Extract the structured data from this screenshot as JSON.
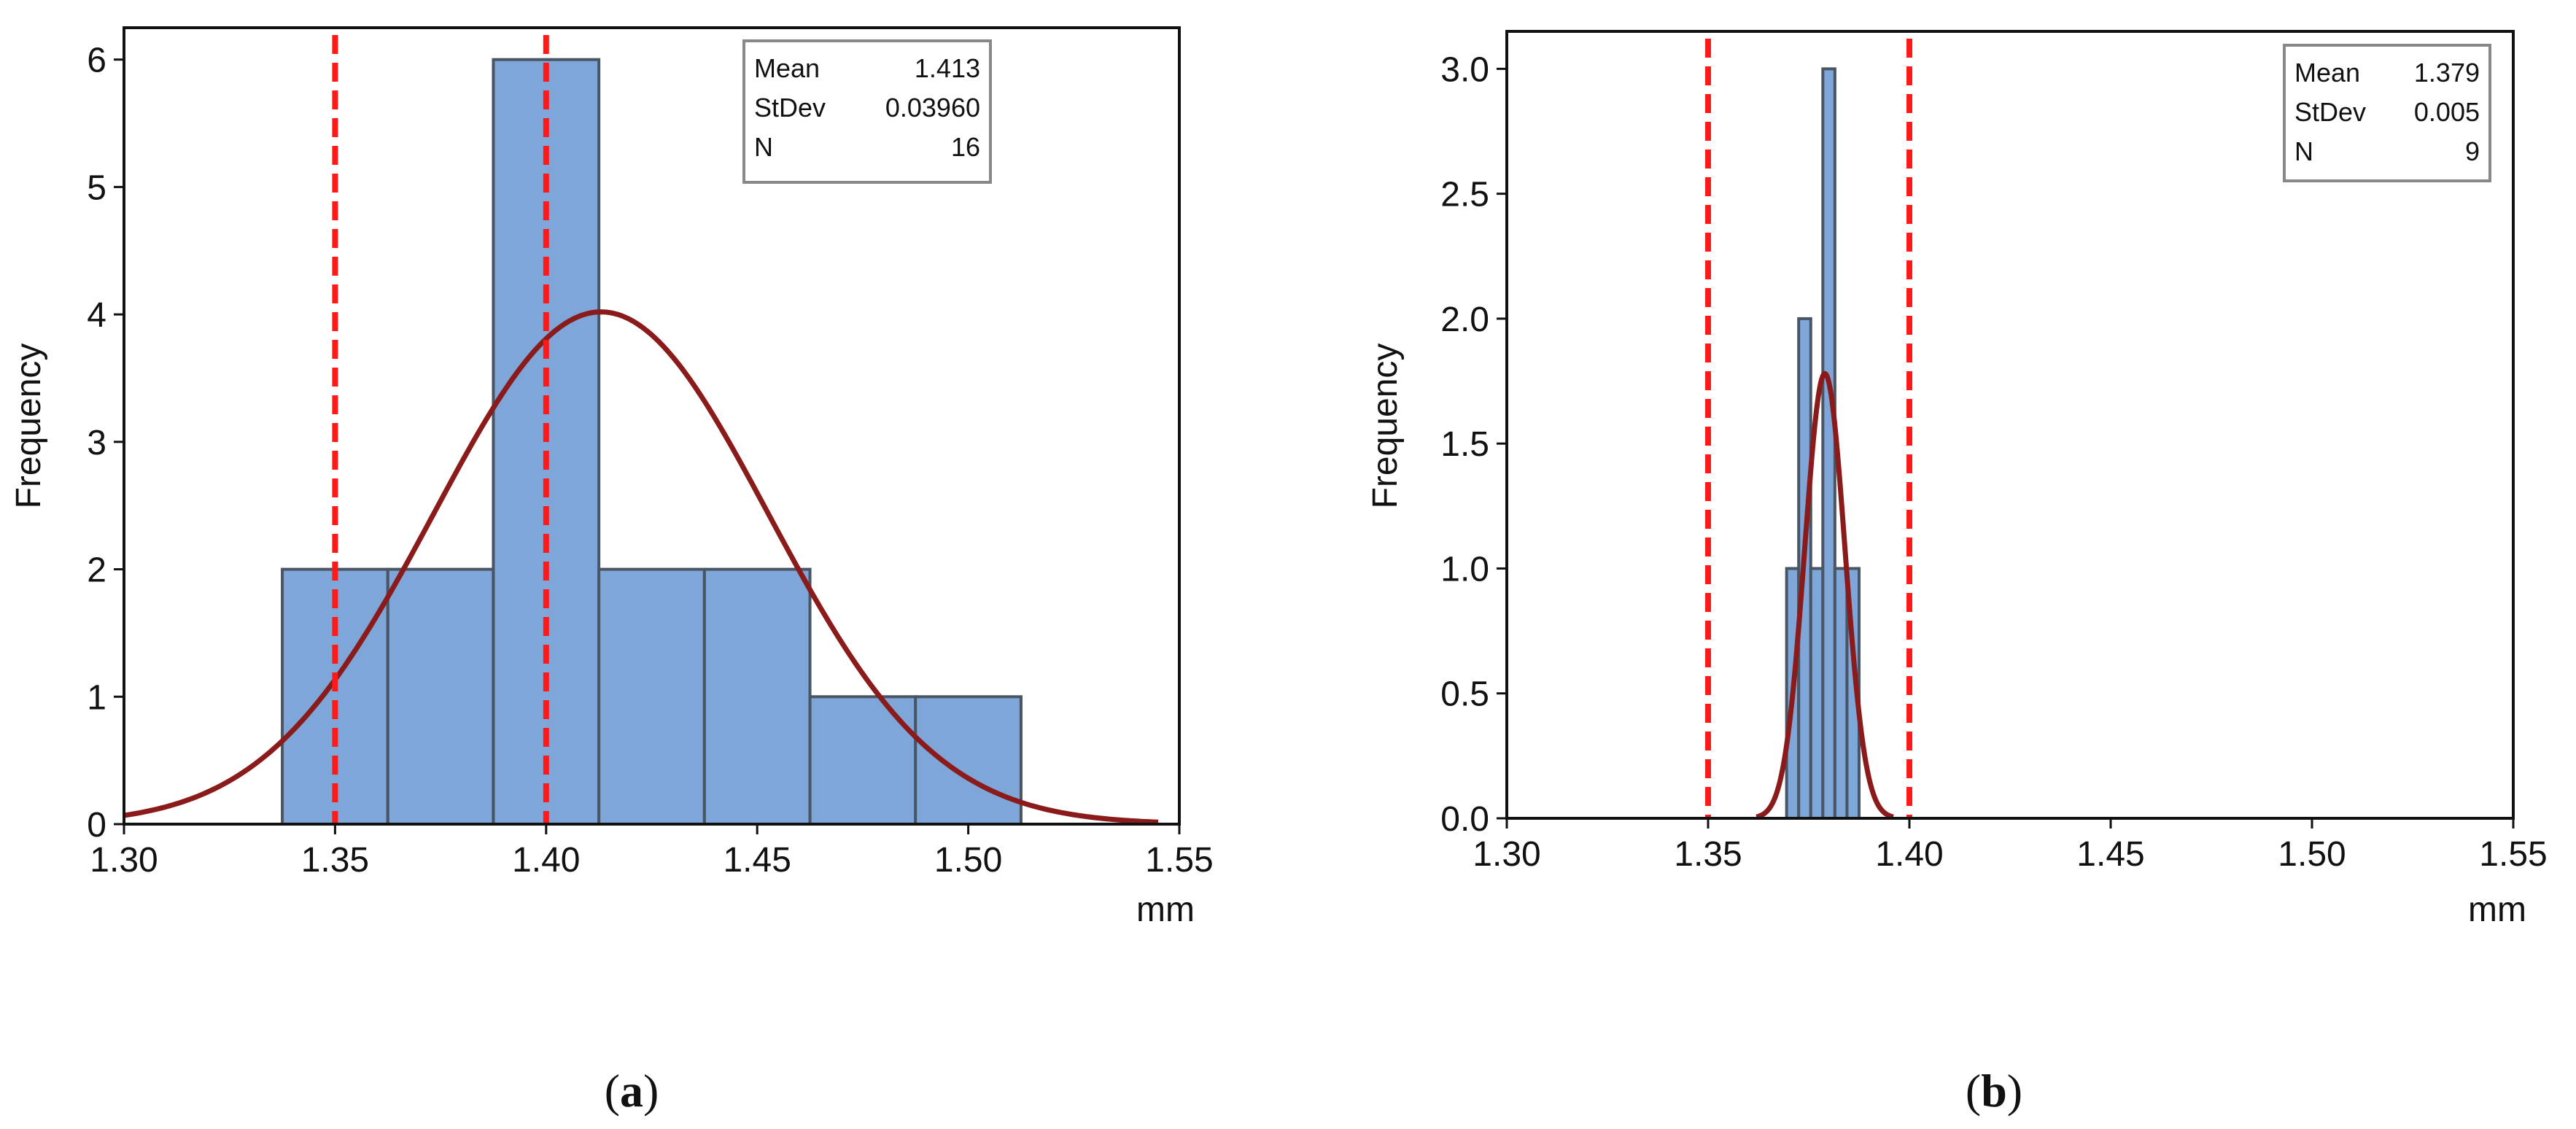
{
  "chart_data": [
    {
      "type": "bar",
      "subtype": "histogram",
      "caption": "a",
      "xlabel": "mm",
      "ylabel": "Frequency",
      "xlim": [
        1.3,
        1.55
      ],
      "ylim": [
        0,
        6.25
      ],
      "xticks": [
        "1.30",
        "1.35",
        "1.40",
        "1.45",
        "1.50",
        "1.55"
      ],
      "xtick_values": [
        1.3,
        1.35,
        1.4,
        1.45,
        1.5,
        1.55
      ],
      "yticks": [
        "0",
        "1",
        "2",
        "3",
        "4",
        "5",
        "6"
      ],
      "ytick_values": [
        0,
        1,
        2,
        3,
        4,
        5,
        6
      ],
      "bins": [
        {
          "start": 1.3375,
          "end": 1.3625,
          "count": 2
        },
        {
          "start": 1.3625,
          "end": 1.3875,
          "count": 2
        },
        {
          "start": 1.3875,
          "end": 1.4125,
          "count": 6
        },
        {
          "start": 1.4125,
          "end": 1.4375,
          "count": 2
        },
        {
          "start": 1.4375,
          "end": 1.4625,
          "count": 2
        },
        {
          "start": 1.4625,
          "end": 1.4875,
          "count": 1
        },
        {
          "start": 1.4875,
          "end": 1.5125,
          "count": 1
        }
      ],
      "spec_limits": [
        1.35,
        1.4
      ],
      "fit_curve": {
        "mean": 1.413,
        "stdev": 0.0396,
        "peak": 4.02,
        "range": [
          1.3,
          1.545
        ]
      },
      "stats": [
        {
          "label": "Mean",
          "value": "1.413"
        },
        {
          "label": "StDev",
          "value": "0.03960"
        },
        {
          "label": "N",
          "value": "16"
        }
      ],
      "colors": {
        "bar_fill": "#7ea6d8",
        "bar_edge": "#4a5563",
        "curve": "#8b1a1a",
        "spec_line": "#ff1a1a"
      }
    },
    {
      "type": "bar",
      "subtype": "histogram",
      "caption": "b",
      "xlabel": "mm",
      "ylabel": "Frequency",
      "xlim": [
        1.3,
        1.55
      ],
      "ylim": [
        0,
        3.15
      ],
      "xticks": [
        "1.30",
        "1.35",
        "1.40",
        "1.45",
        "1.50",
        "1.55"
      ],
      "xtick_values": [
        1.3,
        1.35,
        1.4,
        1.45,
        1.5,
        1.55
      ],
      "yticks": [
        "0.0",
        "0.5",
        "1.0",
        "1.5",
        "2.0",
        "2.5",
        "3.0"
      ],
      "ytick_values": [
        0,
        0.5,
        1.0,
        1.5,
        2.0,
        2.5,
        3.0
      ],
      "bins": [
        {
          "start": 1.3695,
          "end": 1.3725,
          "count": 1
        },
        {
          "start": 1.3725,
          "end": 1.3755,
          "count": 2
        },
        {
          "start": 1.3755,
          "end": 1.3785,
          "count": 1
        },
        {
          "start": 1.3785,
          "end": 1.3815,
          "count": 3
        },
        {
          "start": 1.3815,
          "end": 1.3845,
          "count": 1
        },
        {
          "start": 1.3845,
          "end": 1.3875,
          "count": 1
        }
      ],
      "spec_limits": [
        1.35,
        1.4
      ],
      "fit_curve": {
        "mean": 1.379,
        "stdev": 0.005,
        "peak": 1.78,
        "range": [
          1.362,
          1.396
        ]
      },
      "stats": [
        {
          "label": "Mean",
          "value": "1.379"
        },
        {
          "label": "StDev",
          "value": "0.005"
        },
        {
          "label": "N",
          "value": "9"
        }
      ],
      "colors": {
        "bar_fill": "#7ea6d8",
        "bar_edge": "#4a5563",
        "curve": "#8b1a1a",
        "spec_line": "#ff1a1a"
      }
    }
  ]
}
